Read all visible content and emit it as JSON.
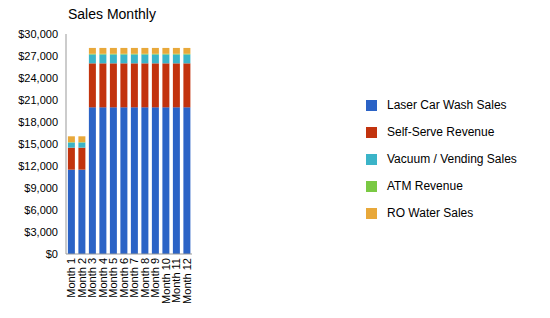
{
  "chart_data": {
    "type": "bar",
    "title": "Sales Monthly",
    "stacked": true,
    "grid": false,
    "legend": "right",
    "categories": [
      "Month 1",
      "Month 2",
      "Month 3",
      "Month 4",
      "Month 5",
      "Month 6",
      "Month 7",
      "Month 8",
      "Month 9",
      "Month 10",
      "Month 11",
      "Month 12"
    ],
    "ylim": [
      0,
      30000
    ],
    "yticks": [
      {
        "value": 0,
        "label": "$0"
      },
      {
        "value": 3000,
        "label": "$3,000"
      },
      {
        "value": 6000,
        "label": "$6,000"
      },
      {
        "value": 9000,
        "label": "$9,000"
      },
      {
        "value": 12000,
        "label": "$12,000"
      },
      {
        "value": 15000,
        "label": "$15,000"
      },
      {
        "value": 18000,
        "label": "$18,000"
      },
      {
        "value": 21000,
        "label": "$21,000"
      },
      {
        "value": 24000,
        "label": "$24,000"
      },
      {
        "value": 27000,
        "label": "$27,000"
      },
      {
        "value": 30000,
        "label": "$30,000"
      }
    ],
    "series": [
      {
        "name": "Laser Car Wash Sales",
        "color": "#2b63c6",
        "values": [
          11500,
          11500,
          20000,
          20000,
          20000,
          20000,
          20000,
          20000,
          20000,
          20000,
          20000,
          20000
        ]
      },
      {
        "name": "Self-Serve Revenue",
        "color": "#c2330e",
        "values": [
          3000,
          3000,
          6000,
          6000,
          6000,
          6000,
          6000,
          6000,
          6000,
          6000,
          6000,
          6000
        ]
      },
      {
        "name": "Vacuum / Vending Sales",
        "color": "#3bb4c8",
        "values": [
          700,
          700,
          1200,
          1200,
          1200,
          1200,
          1200,
          1200,
          1200,
          1200,
          1200,
          1200
        ]
      },
      {
        "name": "ATM Revenue",
        "color": "#7ac943",
        "values": [
          50,
          50,
          100,
          100,
          100,
          100,
          100,
          100,
          100,
          100,
          100,
          100
        ]
      },
      {
        "name": "RO Water Sales",
        "color": "#e8a83a",
        "values": [
          800,
          800,
          800,
          800,
          800,
          800,
          800,
          800,
          800,
          800,
          800,
          800
        ]
      }
    ]
  }
}
